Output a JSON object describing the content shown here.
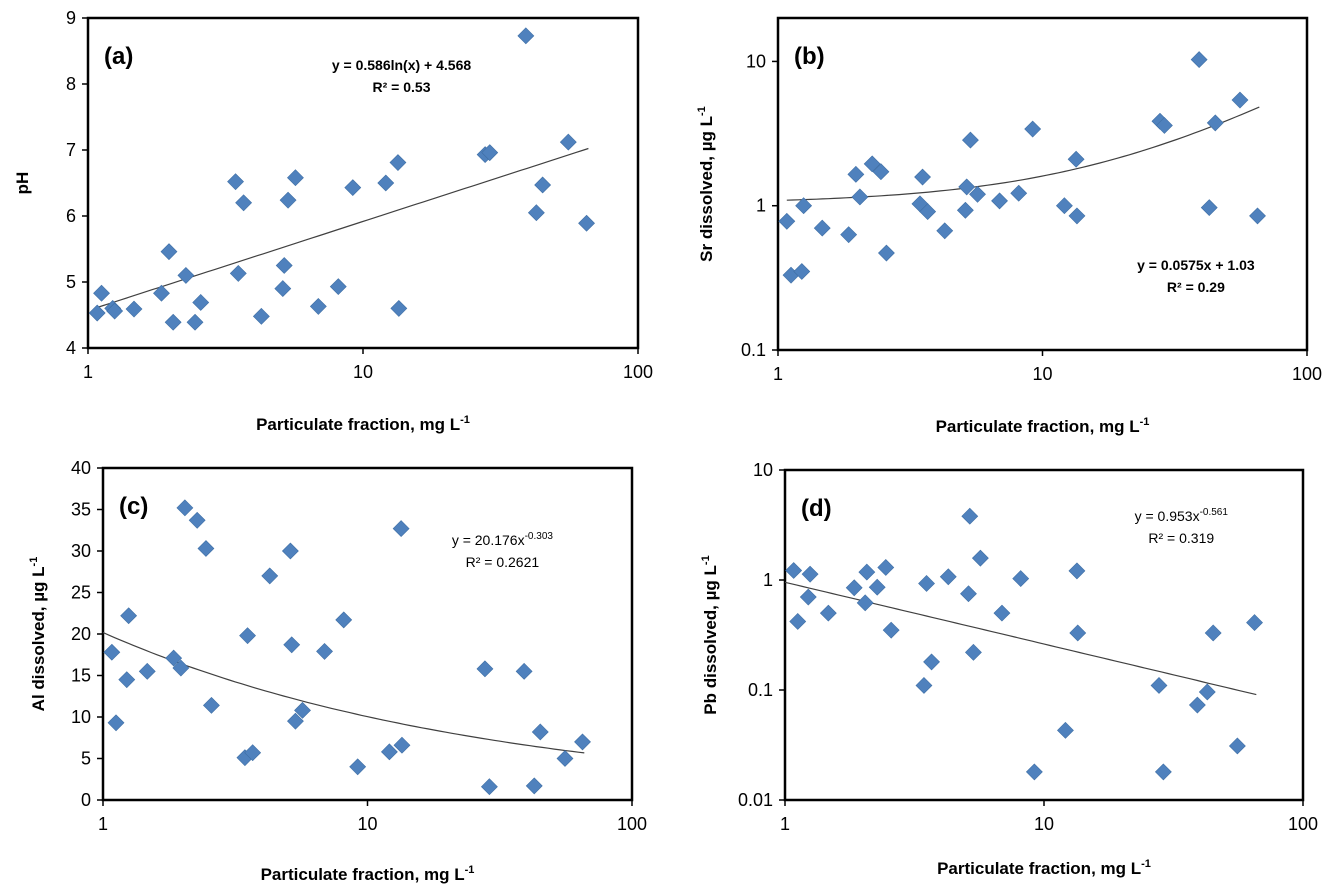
{
  "chart_data": [
    {
      "id": "a",
      "type": "scatter",
      "panel_label": "(a)",
      "xlabel": "Particulate fraction, mg L",
      "xlabel_sup": "-1",
      "ylabel": "pH",
      "ylabel_sup": "",
      "xscale": "log",
      "yscale": "linear",
      "xlim": [
        1,
        100
      ],
      "ylim": [
        4,
        9
      ],
      "xticks": [
        "1",
        "10",
        "100"
      ],
      "yticks": [
        "4",
        "5",
        "6",
        "7",
        "8",
        "9"
      ],
      "equation": {
        "line1_prefix": "y = 0.586ln(x) + 4.568",
        "line1_sup": "",
        "line2": "R² = 0.53",
        "bold": true,
        "anchor": "top-center"
      },
      "trendline": {
        "kind": "ln",
        "a": 0.586,
        "b": 4.568,
        "x_range": [
          1.08,
          66
        ]
      },
      "marker_color": "#4f81bd",
      "points": [
        [
          1.08,
          4.53
        ],
        [
          1.12,
          4.83
        ],
        [
          1.23,
          4.6
        ],
        [
          1.25,
          4.56
        ],
        [
          1.47,
          4.59
        ],
        [
          1.85,
          4.83
        ],
        [
          1.97,
          5.46
        ],
        [
          2.04,
          4.39
        ],
        [
          2.27,
          5.1
        ],
        [
          2.45,
          4.39
        ],
        [
          2.57,
          4.69
        ],
        [
          3.44,
          6.52
        ],
        [
          3.52,
          5.13
        ],
        [
          3.68,
          6.2
        ],
        [
          4.27,
          4.48
        ],
        [
          5.11,
          4.9
        ],
        [
          5.17,
          5.25
        ],
        [
          5.34,
          6.24
        ],
        [
          5.68,
          6.58
        ],
        [
          6.88,
          4.63
        ],
        [
          8.13,
          4.93
        ],
        [
          9.18,
          6.43
        ],
        [
          12.1,
          6.5
        ],
        [
          13.4,
          6.81
        ],
        [
          13.5,
          4.6
        ],
        [
          27.8,
          6.93
        ],
        [
          28.9,
          6.96
        ],
        [
          39.1,
          8.73
        ],
        [
          42.7,
          6.05
        ],
        [
          45.0,
          6.47
        ],
        [
          55.8,
          7.12
        ],
        [
          65.0,
          5.89
        ]
      ]
    },
    {
      "id": "b",
      "type": "scatter",
      "panel_label": "(b)",
      "xlabel": "Particulate fraction, mg L",
      "xlabel_sup": "-1",
      "ylabel": "Sr dissolved, µg L",
      "ylabel_sup": "-1",
      "xscale": "log",
      "yscale": "log",
      "xlim": [
        1,
        100
      ],
      "ylim": [
        0.1,
        20
      ],
      "xticks": [
        "1",
        "10",
        "100"
      ],
      "yticks": [
        "0.1",
        "1",
        "10"
      ],
      "equation": {
        "line1_prefix": "y = 0.0575x + 1.03",
        "line1_sup": "",
        "line2": "R² = 0.29",
        "bold": true,
        "anchor": "bottom-right"
      },
      "trendline": {
        "kind": "linear",
        "a": 0.0575,
        "b": 1.03,
        "x_range": [
          1.08,
          66
        ]
      },
      "marker_color": "#4f81bd",
      "points": [
        [
          1.08,
          0.78
        ],
        [
          1.12,
          0.33
        ],
        [
          1.23,
          0.35
        ],
        [
          1.25,
          1.0
        ],
        [
          1.47,
          0.7
        ],
        [
          1.85,
          0.63
        ],
        [
          1.97,
          1.65
        ],
        [
          2.04,
          1.15
        ],
        [
          2.27,
          1.95
        ],
        [
          2.45,
          1.72
        ],
        [
          2.57,
          0.47
        ],
        [
          3.44,
          1.03
        ],
        [
          3.52,
          1.58
        ],
        [
          3.68,
          0.91
        ],
        [
          4.27,
          0.67
        ],
        [
          5.11,
          0.93
        ],
        [
          5.17,
          1.35
        ],
        [
          5.34,
          2.85
        ],
        [
          5.68,
          1.2
        ],
        [
          6.88,
          1.08
        ],
        [
          8.13,
          1.22
        ],
        [
          9.18,
          3.4
        ],
        [
          12.1,
          1.0
        ],
        [
          13.4,
          2.1
        ],
        [
          13.5,
          0.85
        ],
        [
          27.8,
          3.85
        ],
        [
          28.9,
          3.6
        ],
        [
          39.1,
          10.3
        ],
        [
          42.7,
          0.97
        ],
        [
          45.0,
          3.75
        ],
        [
          55.8,
          5.4
        ],
        [
          65.0,
          0.85
        ]
      ]
    },
    {
      "id": "c",
      "type": "scatter",
      "panel_label": "(c)",
      "xlabel": "Particulate fraction, mg L",
      "xlabel_sup": "-1",
      "ylabel": "Al dissolved, µg L",
      "ylabel_sup": "-1",
      "xscale": "log",
      "yscale": "linear",
      "xlim": [
        1,
        100
      ],
      "ylim": [
        0,
        40
      ],
      "xticks": [
        "1",
        "10",
        "100"
      ],
      "yticks": [
        "0",
        "5",
        "10",
        "15",
        "20",
        "25",
        "30",
        "35",
        "40"
      ],
      "equation": {
        "line1_prefix": "y = 20.176x",
        "line1_sup": "-0.303",
        "line2": "R² = 0.2621",
        "bold": false,
        "anchor": "top-right"
      },
      "trendline": {
        "kind": "power",
        "a": 20.176,
        "b": -0.303,
        "x_range": [
          1.0,
          66
        ]
      },
      "marker_color": "#4f81bd",
      "points": [
        [
          1.08,
          17.8
        ],
        [
          1.12,
          9.3
        ],
        [
          1.23,
          14.5
        ],
        [
          1.25,
          22.2
        ],
        [
          1.47,
          15.5
        ],
        [
          1.85,
          17.1
        ],
        [
          1.97,
          15.9
        ],
        [
          2.04,
          35.2
        ],
        [
          2.27,
          33.7
        ],
        [
          2.45,
          30.3
        ],
        [
          2.57,
          11.4
        ],
        [
          3.44,
          5.1
        ],
        [
          3.52,
          19.8
        ],
        [
          3.68,
          5.7
        ],
        [
          4.27,
          27.0
        ],
        [
          5.11,
          30.0
        ],
        [
          5.17,
          18.7
        ],
        [
          5.34,
          9.5
        ],
        [
          5.68,
          10.8
        ],
        [
          6.88,
          17.9
        ],
        [
          8.13,
          21.7
        ],
        [
          9.18,
          4.0
        ],
        [
          12.1,
          5.8
        ],
        [
          13.4,
          32.7
        ],
        [
          13.5,
          6.6
        ],
        [
          27.8,
          15.8
        ],
        [
          28.9,
          1.6
        ],
        [
          39.1,
          15.5
        ],
        [
          42.7,
          1.7
        ],
        [
          45.0,
          8.2
        ],
        [
          55.8,
          5.0
        ],
        [
          65.0,
          7.0
        ]
      ]
    },
    {
      "id": "d",
      "type": "scatter",
      "panel_label": "(d)",
      "xlabel": "Particulate fraction, mg L",
      "xlabel_sup": "-1",
      "ylabel": "Pb dissolved, µg L",
      "ylabel_sup": "-1",
      "xscale": "log",
      "yscale": "log",
      "xlim": [
        1,
        100
      ],
      "ylim": [
        0.01,
        10
      ],
      "xticks": [
        "1",
        "10",
        "100"
      ],
      "yticks": [
        "0.01",
        "0.1",
        "1",
        "10"
      ],
      "equation": {
        "line1_prefix": "y = 0.953x",
        "line1_sup": "-0.561",
        "line2": "R² = 0.319",
        "bold": false,
        "anchor": "top-right"
      },
      "trendline": {
        "kind": "power",
        "a": 0.953,
        "b": -0.561,
        "x_range": [
          1.0,
          66
        ]
      },
      "marker_color": "#4f81bd",
      "points": [
        [
          1.08,
          1.22
        ],
        [
          1.12,
          0.42
        ],
        [
          1.23,
          0.7
        ],
        [
          1.25,
          1.13
        ],
        [
          1.47,
          0.5
        ],
        [
          1.85,
          0.85
        ],
        [
          2.04,
          0.62
        ],
        [
          2.07,
          1.18
        ],
        [
          2.27,
          0.86
        ],
        [
          2.45,
          1.3
        ],
        [
          2.57,
          0.35
        ],
        [
          3.44,
          0.11
        ],
        [
          3.52,
          0.93
        ],
        [
          3.68,
          0.18
        ],
        [
          4.27,
          1.07
        ],
        [
          5.11,
          0.75
        ],
        [
          5.17,
          3.8
        ],
        [
          5.34,
          0.22
        ],
        [
          5.68,
          1.58
        ],
        [
          6.88,
          0.5
        ],
        [
          8.13,
          1.03
        ],
        [
          9.18,
          0.018
        ],
        [
          12.1,
          0.043
        ],
        [
          13.4,
          1.21
        ],
        [
          13.5,
          0.33
        ],
        [
          27.8,
          0.11
        ],
        [
          28.9,
          0.018
        ],
        [
          39.1,
          0.073
        ],
        [
          42.7,
          0.096
        ],
        [
          45.0,
          0.33
        ],
        [
          55.8,
          0.031
        ],
        [
          65.0,
          0.41
        ]
      ]
    }
  ]
}
